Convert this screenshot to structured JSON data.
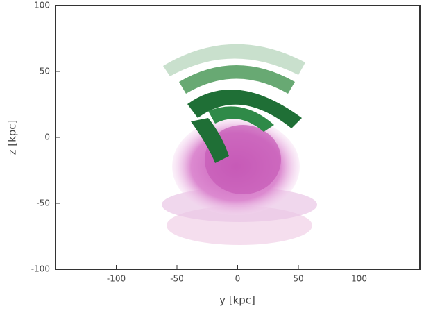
{
  "chart_data": {
    "type": "image",
    "xlabel": "y [kpc]",
    "ylabel": "z [kpc]",
    "xlim": [
      -150,
      150
    ],
    "ylim": [
      -100,
      100
    ],
    "xticks": [
      -100,
      -50,
      0,
      50,
      100
    ],
    "yticks": [
      -100,
      -50,
      0,
      50,
      100
    ]
  }
}
